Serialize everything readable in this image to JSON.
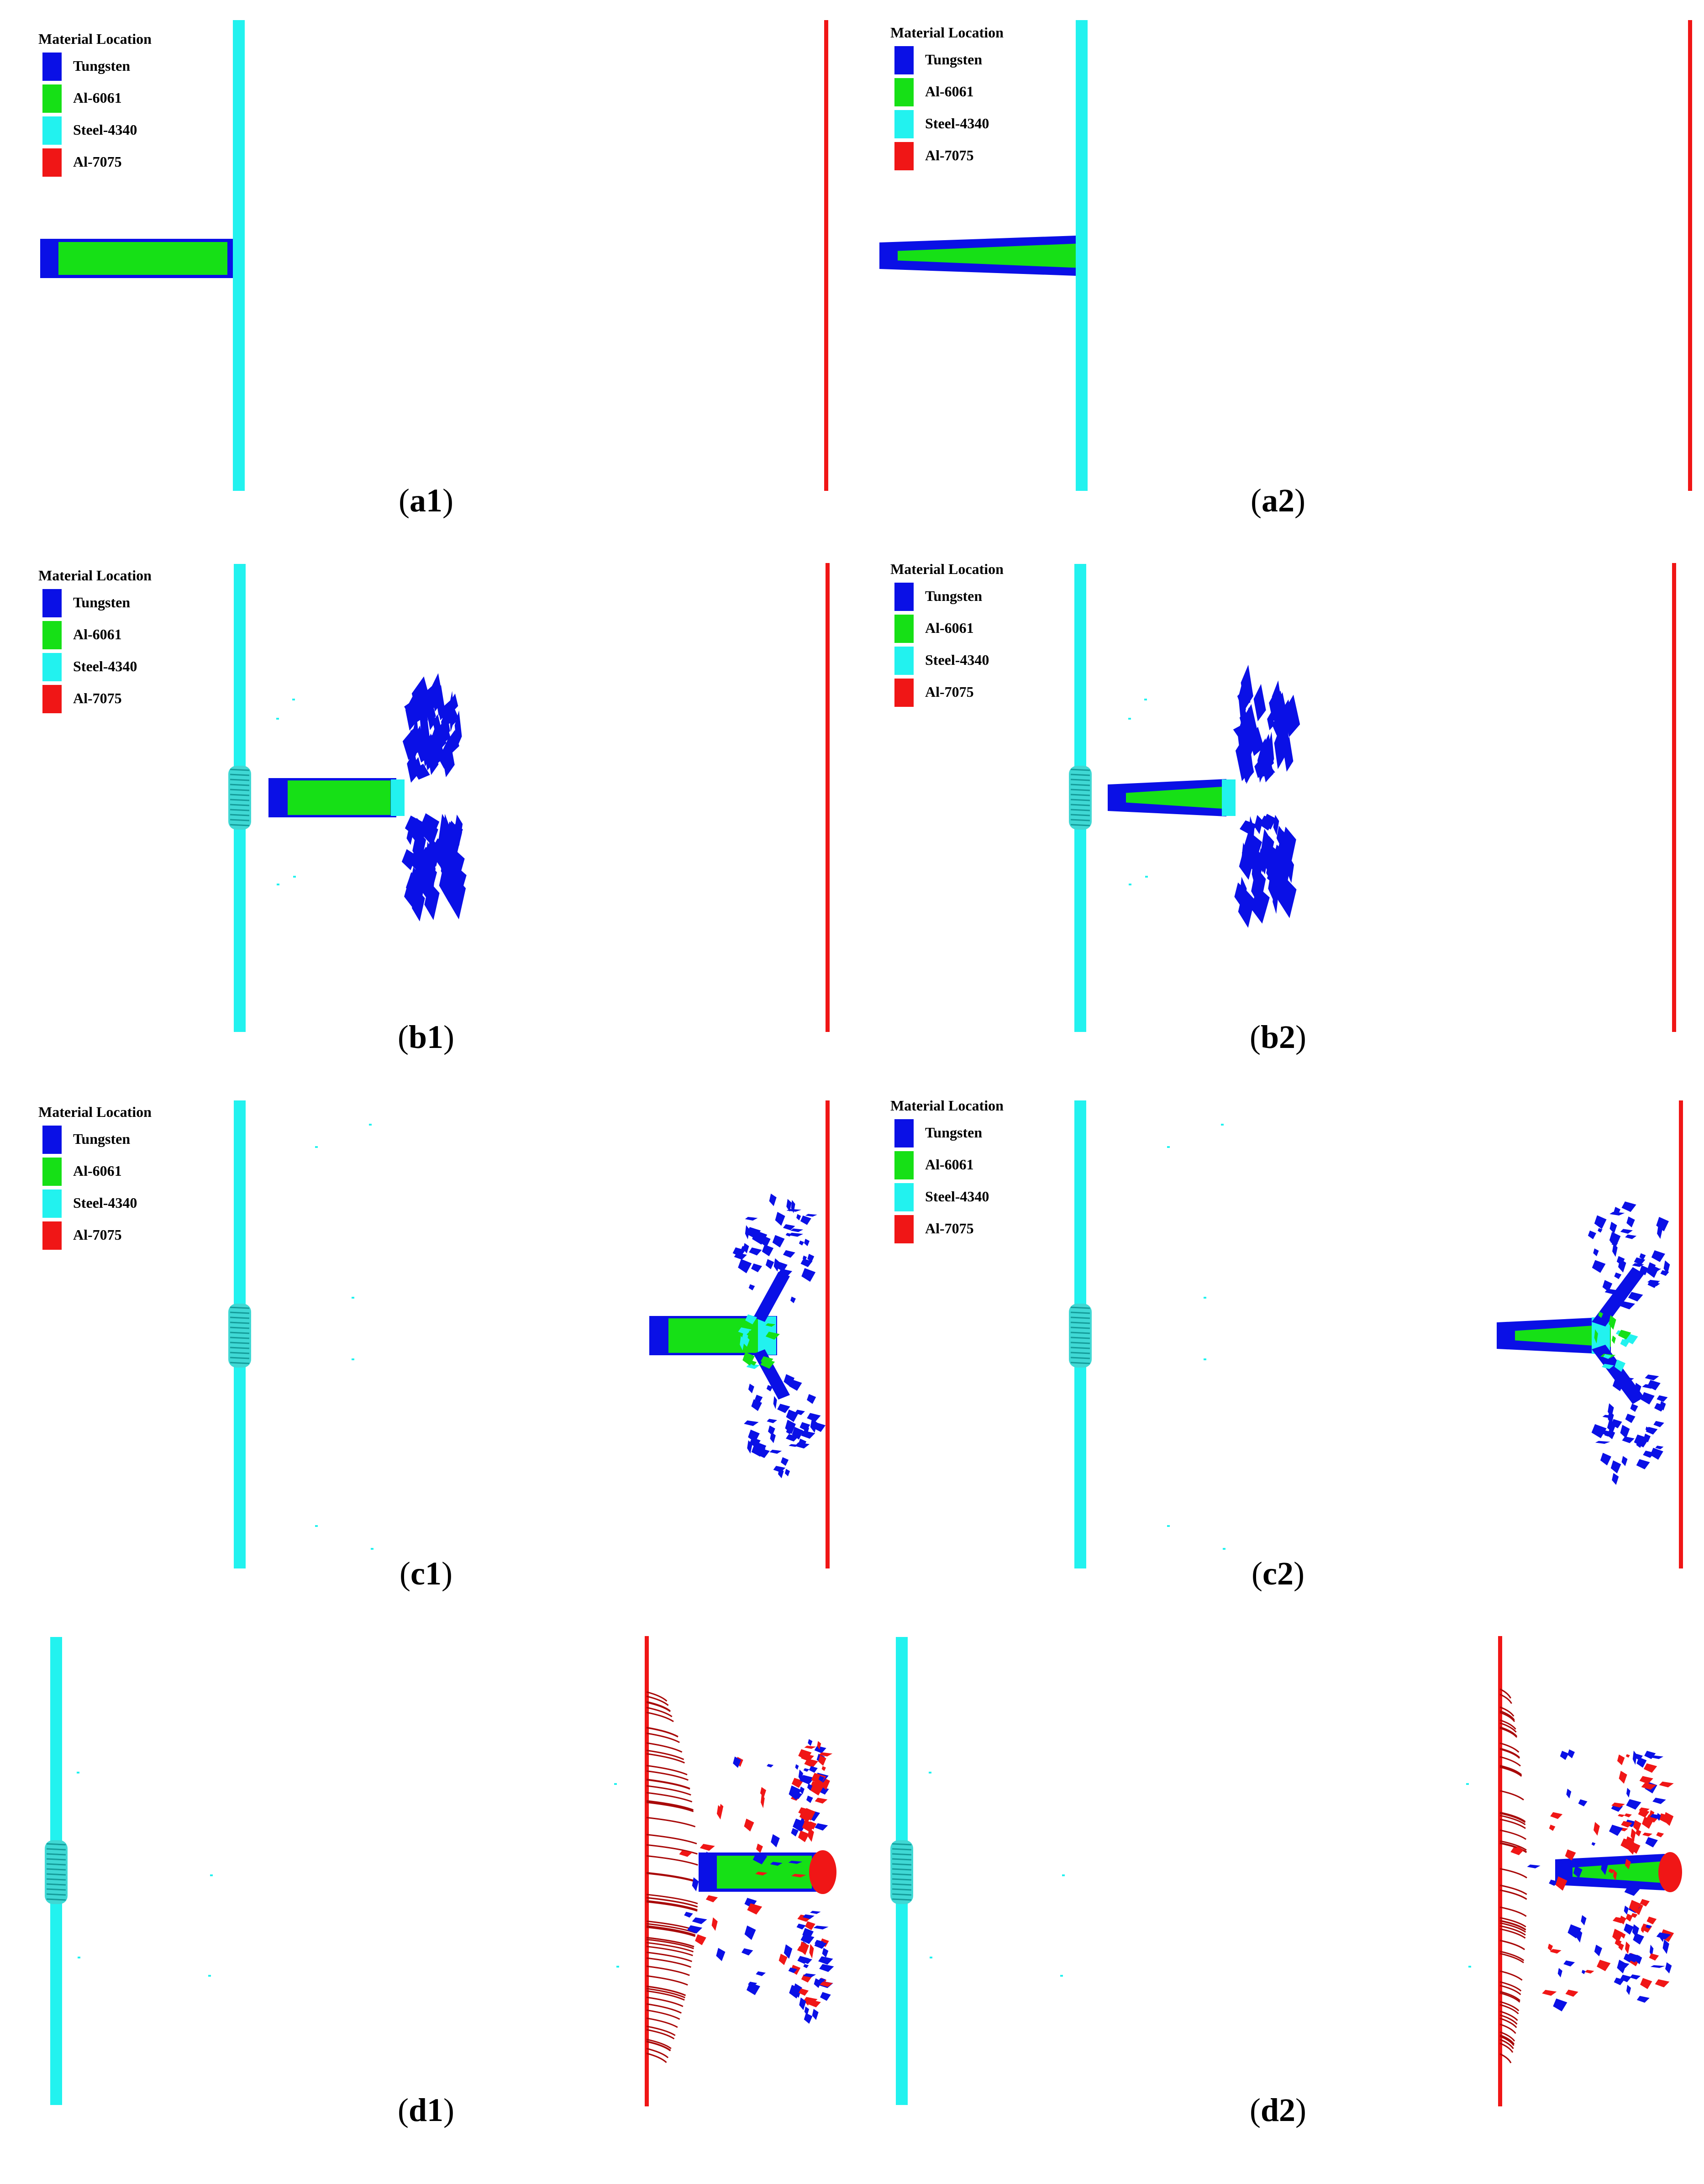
{
  "legend": {
    "title": "Material Location",
    "items": [
      {
        "label": "Tungsten",
        "color": "#0a10e6"
      },
      {
        "label": "Al-6061",
        "color": "#16e016"
      },
      {
        "label": "Steel-4340",
        "color": "#22f2ef"
      },
      {
        "label": "Al-7075",
        "color": "#f01616"
      }
    ]
  },
  "colors": {
    "tungsten": "#0a10e6",
    "al6061": "#16e016",
    "steel4340": "#22f2ef",
    "al7075": "#f01616",
    "al7075_dark": "#a80808"
  },
  "panels": [
    {
      "id": "a1",
      "label": "a1",
      "stage": "initial",
      "shape": "straight",
      "has_legend": true
    },
    {
      "id": "a2",
      "label": "a2",
      "stage": "initial",
      "shape": "tapered",
      "has_legend": true
    },
    {
      "id": "b1",
      "label": "b1",
      "stage": "first-plate-penetration",
      "shape": "straight",
      "has_legend": true
    },
    {
      "id": "b2",
      "label": "b2",
      "stage": "first-plate-penetration",
      "shape": "tapered",
      "has_legend": true
    },
    {
      "id": "c1",
      "label": "c1",
      "stage": "approach-second-plate",
      "shape": "straight",
      "has_legend": true
    },
    {
      "id": "c2",
      "label": "c2",
      "stage": "approach-second-plate",
      "shape": "tapered",
      "has_legend": true
    },
    {
      "id": "d1",
      "label": "d1",
      "stage": "second-plate-impact",
      "shape": "straight",
      "has_legend": false
    },
    {
      "id": "d2",
      "label": "d2",
      "stage": "second-plate-impact",
      "shape": "tapered",
      "has_legend": false
    }
  ]
}
